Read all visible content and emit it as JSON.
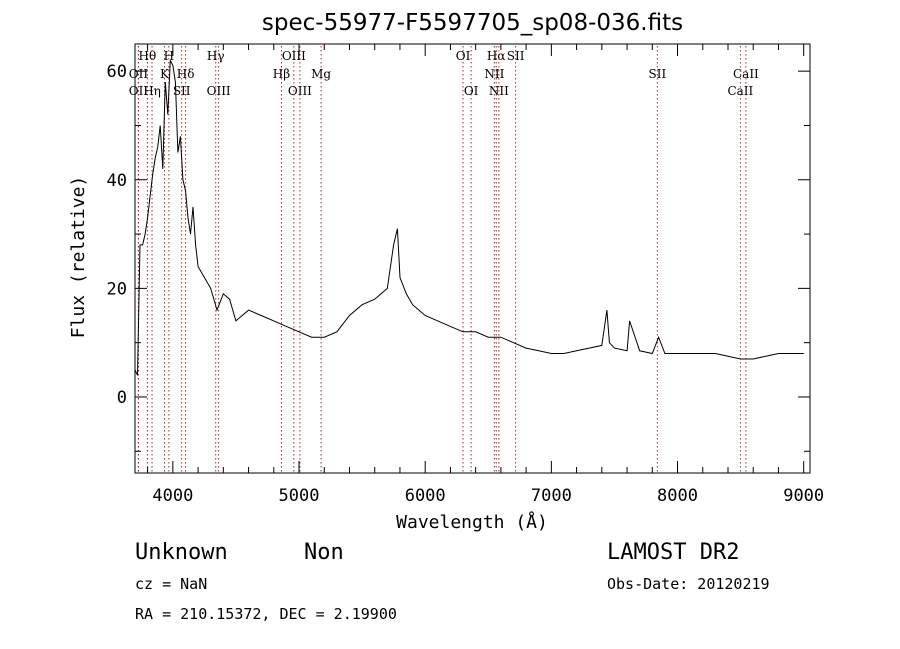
{
  "chart_data": {
    "type": "line",
    "title": "spec-55977-F5597705_sp08-036.fits",
    "xlabel": "Wavelength (Å)",
    "ylabel": "Flux (relative)",
    "xlim": [
      3700,
      9050
    ],
    "ylim": [
      -14,
      65
    ],
    "x_ticks": [
      4000,
      5000,
      6000,
      7000,
      8000,
      9000
    ],
    "y_ticks": [
      0,
      20,
      40,
      60
    ],
    "grid": false,
    "line_color": "#000000",
    "marker_color": "#b22222",
    "series": [
      {
        "x": [
          3700,
          3720,
          3740,
          3760,
          3780,
          3800,
          3820,
          3840,
          3860,
          3880,
          3900,
          3920,
          3940,
          3960,
          3980,
          4000,
          4020,
          4040,
          4060,
          4080,
          4100,
          4120,
          4140,
          4160,
          4180,
          4200,
          4250,
          4300,
          4350,
          4400,
          4450,
          4500,
          4600,
          4700,
          4800,
          4900,
          5000,
          5100,
          5200,
          5300,
          5400,
          5500,
          5600,
          5700,
          5750,
          5780,
          5800,
          5850,
          5900,
          5950,
          6000,
          6100,
          6200,
          6300,
          6400,
          6500,
          6560,
          6600,
          6700,
          6800,
          6900,
          7000,
          7100,
          7200,
          7300,
          7400,
          7440,
          7460,
          7500,
          7600,
          7620,
          7700,
          7800,
          7850,
          7900,
          8000,
          8100,
          8200,
          8300,
          8400,
          8500,
          8600,
          8700,
          8800,
          8900,
          9000
        ],
        "y": [
          5,
          4,
          28,
          28,
          30,
          33,
          37,
          41,
          44,
          46,
          50,
          42,
          58,
          52,
          62,
          61,
          58,
          45,
          48,
          40,
          38,
          33,
          30,
          35,
          28,
          24,
          22,
          20,
          16,
          19,
          18,
          14,
          16,
          15,
          14,
          13,
          12,
          11,
          11,
          12,
          15,
          17,
          18,
          20,
          28,
          31,
          22,
          19,
          17,
          16,
          15,
          14,
          13,
          12,
          12,
          11,
          11,
          11,
          10,
          9,
          8.5,
          8,
          8,
          8.5,
          9,
          9.5,
          16,
          10,
          9,
          8.5,
          14,
          8.5,
          8,
          11,
          8,
          8,
          8,
          8,
          8,
          7.5,
          7,
          7,
          7.5,
          8,
          8,
          8
        ]
      }
    ],
    "line_markers": [
      {
        "label": "Hθ",
        "x": 3798,
        "row": 1
      },
      {
        "label": "OII",
        "x": 3727,
        "row": 2
      },
      {
        "label": "OII",
        "x": 3727,
        "row": 3
      },
      {
        "label": "Hη",
        "x": 3835,
        "row": 3
      },
      {
        "label": "H",
        "x": 3968,
        "row": 1
      },
      {
        "label": "K",
        "x": 3934,
        "row": 2
      },
      {
        "label": "Hδ",
        "x": 4101,
        "row": 2
      },
      {
        "label": "SII",
        "x": 4070,
        "row": 3
      },
      {
        "label": "Hγ",
        "x": 4340,
        "row": 1
      },
      {
        "label": "OIII",
        "x": 4363,
        "row": 3
      },
      {
        "label": "Hβ",
        "x": 4861,
        "row": 2
      },
      {
        "label": "OIII",
        "x": 4959,
        "row": 1
      },
      {
        "label": "OIII",
        "x": 5007,
        "row": 3
      },
      {
        "label": "Mg",
        "x": 5175,
        "row": 2
      },
      {
        "label": "OI",
        "x": 6300,
        "row": 1
      },
      {
        "label": "OI",
        "x": 6364,
        "row": 3
      },
      {
        "label": "Hα",
        "x": 6563,
        "row": 1
      },
      {
        "label": "NII",
        "x": 6548,
        "row": 2
      },
      {
        "label": "NII",
        "x": 6584,
        "row": 3
      },
      {
        "label": "SII",
        "x": 6717,
        "row": 1
      },
      {
        "label": "SII",
        "x": 7840,
        "row": 2
      },
      {
        "label": "CaII",
        "x": 8542,
        "row": 2
      },
      {
        "label": "CaII",
        "x": 8498,
        "row": 3
      }
    ]
  },
  "info": {
    "classification": "Unknown",
    "subclass": "Non",
    "survey": "LAMOST DR2",
    "cz": "cz = NaN",
    "obs_date": "Obs-Date: 20120219",
    "coords": "RA = 210.15372, DEC =    2.19900"
  }
}
